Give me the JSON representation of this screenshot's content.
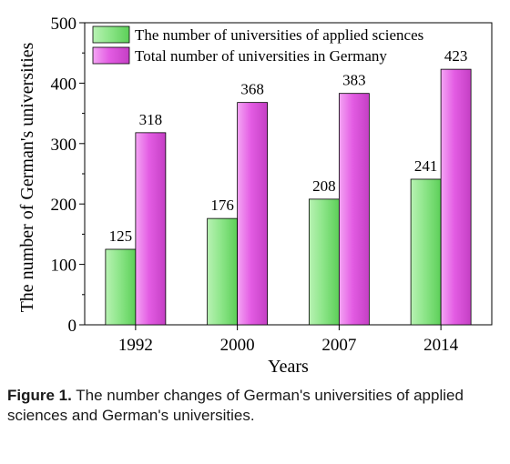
{
  "chart_data": {
    "type": "bar",
    "categories": [
      "1992",
      "2000",
      "2007",
      "2014"
    ],
    "series": [
      {
        "name": "The number of universities of applied sciences",
        "values": [
          125,
          176,
          208,
          241
        ],
        "color": "#8ee68a"
      },
      {
        "name": "Total number of universities in Germany",
        "values": [
          318,
          368,
          383,
          423
        ],
        "color": "#e35ce3"
      }
    ],
    "xlabel": "Years",
    "ylabel": "The number of German's universities",
    "ylim": [
      0,
      500
    ],
    "yticks": [
      "0",
      "100",
      "200",
      "300",
      "400",
      "500"
    ],
    "data_labels": true,
    "legend": "top-left",
    "grid": false
  },
  "caption": {
    "label": "Figure 1.",
    "text": "The number changes of German's universities of applied sciences and German's universities."
  }
}
